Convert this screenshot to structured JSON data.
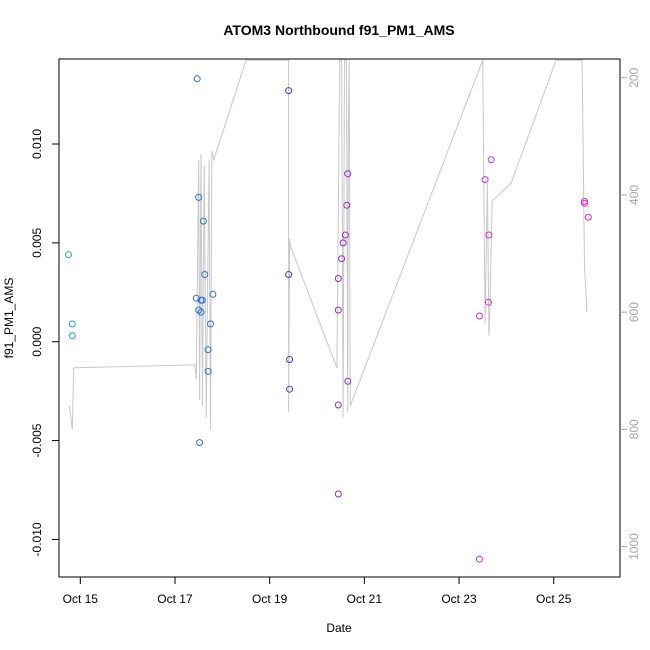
{
  "chart_data": {
    "type": "scatter",
    "title": "ATOM3 Northbound f91_PM1_AMS",
    "xlabel": "Date",
    "ylabel": "f91_PM1_AMS",
    "xlim": [
      14.55,
      26.4
    ],
    "ylim": [
      -0.0119,
      0.0143
    ],
    "x_ticks": [
      {
        "value": 15,
        "label": "Oct 15"
      },
      {
        "value": 17,
        "label": "Oct 17"
      },
      {
        "value": 19,
        "label": "Oct 19"
      },
      {
        "value": 21,
        "label": "Oct 21"
      },
      {
        "value": 23,
        "label": "Oct 23"
      },
      {
        "value": 25,
        "label": "Oct 25"
      }
    ],
    "y_ticks": [
      {
        "value": -0.01,
        "label": "-0.010"
      },
      {
        "value": -0.005,
        "label": "-0.005"
      },
      {
        "value": 0.0,
        "label": "0.000"
      },
      {
        "value": 0.005,
        "label": "0.005"
      },
      {
        "value": 0.01,
        "label": "0.010"
      }
    ],
    "y2_axis": {
      "ylim": [
        1052,
        168
      ],
      "ticks": [
        {
          "value": 200,
          "label": "200"
        },
        {
          "value": 400,
          "label": "400"
        },
        {
          "value": 600,
          "label": "600"
        },
        {
          "value": 800,
          "label": "800"
        },
        {
          "value": 1000,
          "label": "1000"
        }
      ],
      "color": "#a6a6a6"
    },
    "grid": false,
    "points": [
      {
        "x": 14.75,
        "y": 0.0044,
        "color": "#1ea4e0"
      },
      {
        "x": 14.83,
        "y": 0.0009,
        "color": "#1ea4e0"
      },
      {
        "x": 14.83,
        "y": 0.0003,
        "color": "#1ea4e0"
      },
      {
        "x": 17.47,
        "y": 0.0133,
        "color": "#2c6fe6"
      },
      {
        "x": 17.5,
        "y": 0.0073,
        "color": "#2c6fe6"
      },
      {
        "x": 17.6,
        "y": 0.0061,
        "color": "#2c6fe6"
      },
      {
        "x": 17.45,
        "y": 0.0022,
        "color": "#2c6fe6"
      },
      {
        "x": 17.55,
        "y": 0.0021,
        "color": "#2c6fe6"
      },
      {
        "x": 17.58,
        "y": 0.0021,
        "color": "#2c6fe6"
      },
      {
        "x": 17.5,
        "y": 0.0016,
        "color": "#2c6fe6"
      },
      {
        "x": 17.55,
        "y": 0.0015,
        "color": "#2c6fe6"
      },
      {
        "x": 17.63,
        "y": 0.0034,
        "color": "#2c6fe6"
      },
      {
        "x": 17.8,
        "y": 0.0024,
        "color": "#2c6fe6"
      },
      {
        "x": 17.75,
        "y": 0.0009,
        "color": "#2c6fe6"
      },
      {
        "x": 17.7,
        "y": -0.0004,
        "color": "#2c6fe6"
      },
      {
        "x": 17.7,
        "y": -0.0015,
        "color": "#2c6fe6"
      },
      {
        "x": 17.52,
        "y": -0.0051,
        "color": "#2c6fe6"
      },
      {
        "x": 19.4,
        "y": 0.0127,
        "color": "#3a3ad6"
      },
      {
        "x": 19.4,
        "y": 0.0034,
        "color": "#3a3ad6"
      },
      {
        "x": 19.42,
        "y": -0.0009,
        "color": "#3a3ad6"
      },
      {
        "x": 19.42,
        "y": -0.0024,
        "color": "#3a3ad6"
      },
      {
        "x": 20.65,
        "y": 0.0085,
        "color": "#8a2bd6"
      },
      {
        "x": 20.63,
        "y": 0.0069,
        "color": "#8a2bd6"
      },
      {
        "x": 20.6,
        "y": 0.0054,
        "color": "#8a2bd6"
      },
      {
        "x": 20.55,
        "y": 0.005,
        "color": "#8a2bd6"
      },
      {
        "x": 20.52,
        "y": 0.0042,
        "color": "#8a2bd6"
      },
      {
        "x": 20.45,
        "y": 0.0032,
        "color": "#8a2bd6"
      },
      {
        "x": 20.45,
        "y": 0.0016,
        "color": "#8a2bd6"
      },
      {
        "x": 20.65,
        "y": -0.002,
        "color": "#8a2bd6"
      },
      {
        "x": 20.45,
        "y": -0.0032,
        "color": "#8a2bd6"
      },
      {
        "x": 20.45,
        "y": -0.0077,
        "color": "#8a2bd6"
      },
      {
        "x": 23.68,
        "y": 0.0092,
        "color": "#d22ad8"
      },
      {
        "x": 23.55,
        "y": 0.0082,
        "color": "#d22ad8"
      },
      {
        "x": 23.63,
        "y": 0.0054,
        "color": "#d22ad8"
      },
      {
        "x": 23.62,
        "y": 0.002,
        "color": "#d22ad8"
      },
      {
        "x": 23.43,
        "y": 0.0013,
        "color": "#d22ad8"
      },
      {
        "x": 23.43,
        "y": -0.011,
        "color": "#d22ad8"
      },
      {
        "x": 25.65,
        "y": 0.0071,
        "color": "#e020d0"
      },
      {
        "x": 25.65,
        "y": 0.007,
        "color": "#e020d0"
      },
      {
        "x": 25.73,
        "y": 0.0063,
        "color": "#e020d0"
      }
    ],
    "y2_line": {
      "color": "#c8c8c8",
      "x": [
        14.77,
        14.83,
        14.86,
        17.42,
        17.45,
        17.5,
        17.52,
        17.55,
        17.58,
        17.62,
        17.66,
        17.72,
        17.75,
        17.78,
        17.82,
        18.5,
        18.6,
        19.4,
        19.4,
        19.42,
        19.42,
        19.42,
        19.45,
        20.42,
        20.48,
        20.52,
        20.55,
        20.58,
        20.62,
        20.65,
        20.66,
        20.68,
        20.7,
        23.5,
        23.55,
        23.6,
        23.63,
        23.65,
        23.7,
        24.1,
        25.05,
        25.6,
        25.65,
        25.7
      ],
      "y": [
        760,
        800,
        695,
        690,
        715,
        340,
        750,
        330,
        760,
        350,
        780,
        340,
        800,
        325,
        340,
        170,
        170,
        170,
        770,
        475,
        530,
        480,
        490,
        695,
        170,
        170,
        780,
        170,
        170,
        770,
        280,
        170,
        760,
        170,
        620,
        380,
        640,
        600,
        410,
        380,
        170,
        170,
        520,
        600
      ]
    }
  }
}
